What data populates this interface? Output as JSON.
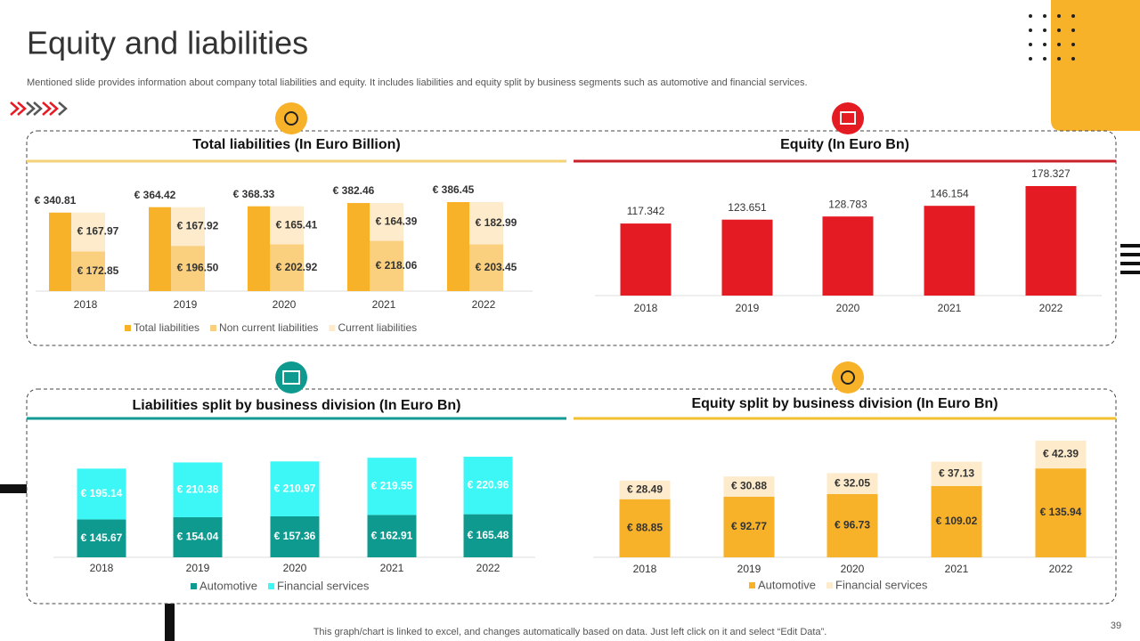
{
  "title": "Equity and liabilities",
  "subtitle": "Mentioned slide provides information about company total liabilities and equity. It includes liabilities and equity split by business segments such as automotive and financial services.",
  "footer": "This graph/chart is linked to excel,  and changes automatically based on data. Just left click on it and select “Edit Data”.",
  "page_number": 39,
  "chart_data": [
    {
      "type": "stackedgroup",
      "title": "Total liabilities  (In Euro Billion)",
      "categories": [
        "2018",
        "2019",
        "2020",
        "2021",
        "2022"
      ],
      "series": [
        {
          "name": "Total liabilities",
          "color": "#F8B229",
          "values": [
            340.81,
            364.42,
            368.33,
            382.46,
            386.45
          ],
          "value_labels": [
            "€ 340.81",
            "€ 364.42",
            "€ 368.33",
            "€ 382.46",
            "€ 386.45"
          ]
        },
        {
          "name": "Non current liabilities",
          "color": "#FAD07F",
          "values": [
            172.85,
            196.5,
            202.92,
            218.06,
            203.45
          ],
          "value_labels": [
            "€ 172.85",
            "€ 196.50",
            "€ 202.92",
            "€ 218.06",
            "€ 203.45"
          ]
        },
        {
          "name": "Current liabilities",
          "color": "#FDEBCB",
          "values": [
            167.97,
            167.92,
            165.41,
            164.39,
            182.99
          ],
          "value_labels": [
            "€ 167.97",
            "€ 167.92",
            "€ 165.41",
            "€ 164.39",
            "€ 182.99"
          ]
        }
      ]
    },
    {
      "type": "bar",
      "title": "Equity (In Euro Bn)",
      "categories": [
        "2018",
        "2019",
        "2020",
        "2021",
        "2022"
      ],
      "values": [
        117.342,
        123.651,
        128.783,
        146.154,
        178.327
      ],
      "color": "#E41B23"
    },
    {
      "type": "stacked",
      "title": "Liabilities split by business division (In Euro Bn)",
      "categories": [
        "2018",
        "2019",
        "2020",
        "2021",
        "2022"
      ],
      "series": [
        {
          "name": "Automotive",
          "color": "#0E9A8F",
          "values": [
            145.67,
            154.04,
            157.36,
            162.91,
            165.48
          ],
          "value_labels": [
            "€ 145.67",
            "€ 154.04",
            "€ 157.36",
            "€ 162.91",
            "€ 165.48"
          ]
        },
        {
          "name": "Financial services",
          "color": "#3DF7F7",
          "values": [
            195.14,
            210.38,
            210.97,
            219.55,
            220.96
          ],
          "value_labels": [
            "€ 195.14",
            "€ 210.38",
            "€ 210.97",
            "€ 219.55",
            "€ 220.96"
          ]
        }
      ]
    },
    {
      "type": "stacked",
      "title": "Equity split by business division (In Euro Bn)",
      "categories": [
        "2018",
        "2019",
        "2020",
        "2021",
        "2022"
      ],
      "series": [
        {
          "name": "Automotive",
          "color": "#F8B229",
          "values": [
            88.85,
            92.77,
            96.73,
            109.02,
            135.94
          ],
          "value_labels": [
            "€ 88.85",
            "€ 92.77",
            "€ 96.73",
            "€ 109.02",
            "€ 135.94"
          ]
        },
        {
          "name": "Financial services",
          "color": "#FDEBCB",
          "values": [
            28.49,
            30.88,
            32.05,
            37.13,
            42.39
          ],
          "value_labels": [
            "€ 28.49",
            "€ 30.88",
            "€ 32.05",
            "€ 37.13",
            "€ 42.39"
          ]
        }
      ]
    }
  ]
}
